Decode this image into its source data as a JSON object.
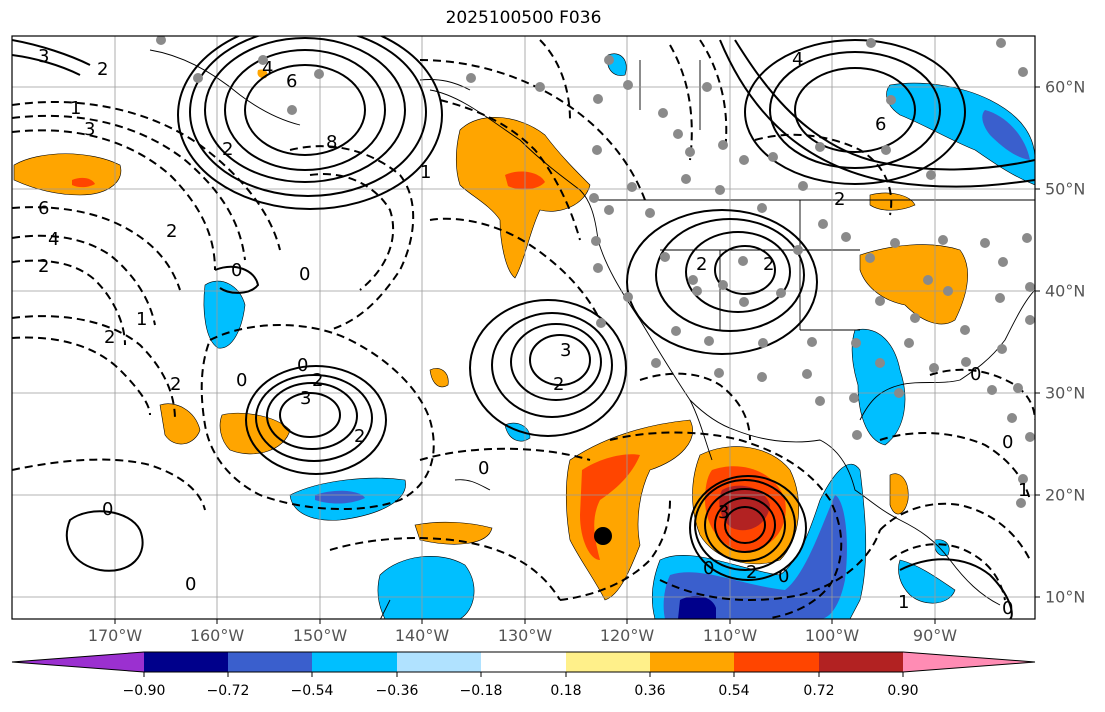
{
  "title": "2025100500 F036",
  "lon_labels": [
    "170°W",
    "160°W",
    "150°W",
    "140°W",
    "130°W",
    "120°W",
    "110°W",
    "100°W",
    "90°W"
  ],
  "lat_labels": [
    "60°N",
    "50°N",
    "40°N",
    "30°N",
    "20°N",
    "10°N"
  ],
  "colorbar": {
    "ticks": [
      "−0.90",
      "−0.72",
      "−0.54",
      "−0.36",
      "−0.18",
      "0.18",
      "0.36",
      "0.54",
      "0.72",
      "0.90"
    ],
    "colors": [
      "#9b30d0",
      "#00008b",
      "#3a5fcd",
      "#00bfff",
      "#b0e2ff",
      "#ffffff",
      "#fff08a",
      "#ffa500",
      "#ff4500",
      "#b22222",
      "#ff8cb4"
    ]
  },
  "contour_labels": [
    "3",
    "2",
    "6",
    "8",
    "4",
    "2",
    "1",
    "3",
    "6",
    "4",
    "2",
    "2",
    "1",
    "2",
    "0",
    "0",
    "1",
    "2",
    "2",
    "0",
    "2",
    "3",
    "0",
    "2",
    "3",
    "0",
    "0",
    "3",
    "2",
    "0",
    "0",
    "0",
    "1",
    "4",
    "6",
    "2",
    "2",
    "2",
    "0",
    "1",
    "0",
    "0"
  ]
}
